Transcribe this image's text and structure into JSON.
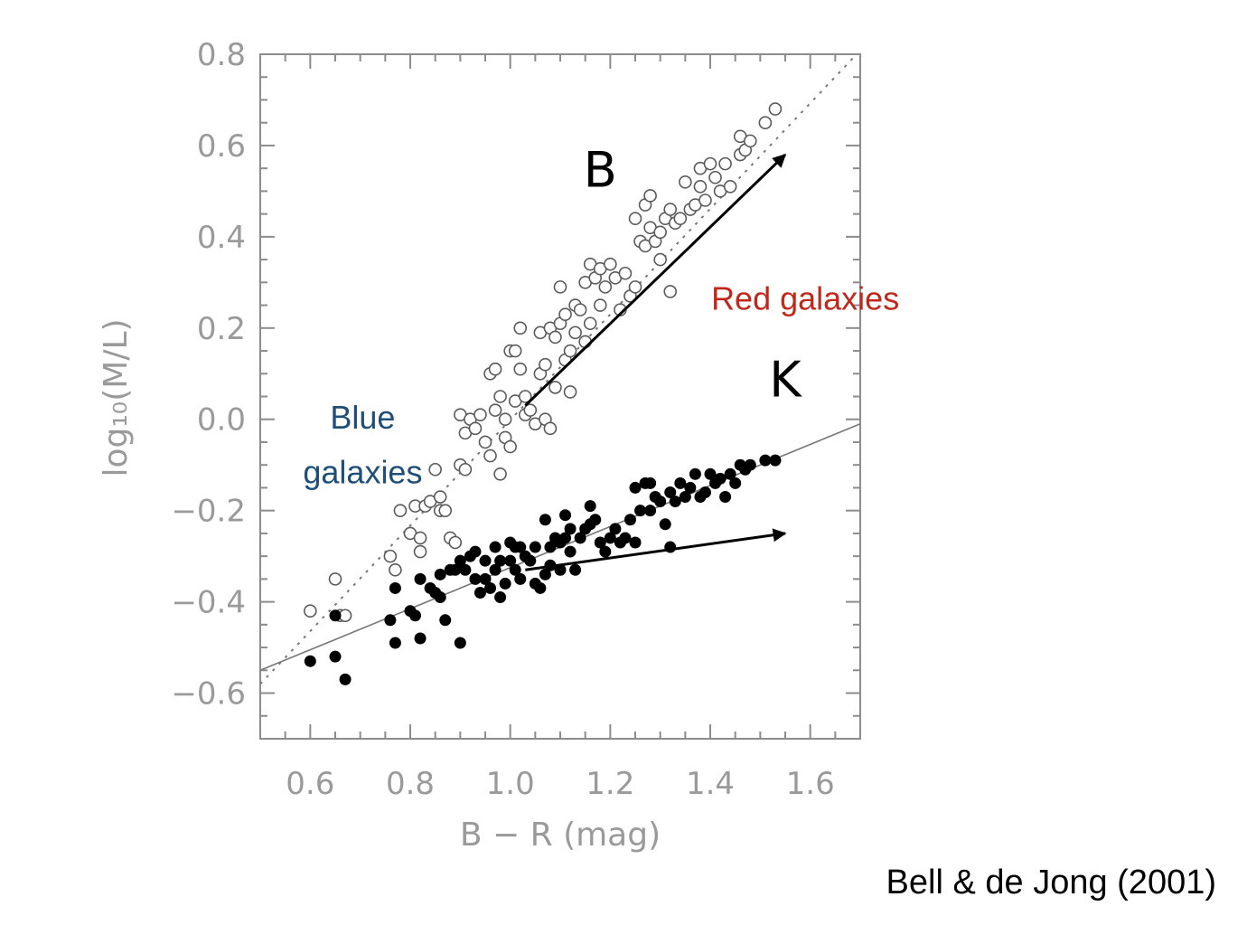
{
  "chart_data": {
    "type": "scatter",
    "xlabel": "B − R (mag)",
    "ylabel": "log₁₀(M/L)",
    "xlim": [
      0.5,
      1.7
    ],
    "ylim": [
      -0.7,
      0.8
    ],
    "x_ticks": [
      "0.6",
      "0.8",
      "1.0",
      "1.2",
      "1.4",
      "1.6"
    ],
    "y_ticks": [
      "0.8",
      "0.6",
      "0.4",
      "0.2",
      "0.0",
      "−0.2",
      "−0.4",
      "−0.6"
    ],
    "x_tick_values": [
      0.6,
      0.8,
      1.0,
      1.2,
      1.4,
      1.6
    ],
    "y_tick_values": [
      0.8,
      0.6,
      0.4,
      0.2,
      0.0,
      -0.2,
      -0.4,
      -0.6
    ],
    "grid": false,
    "series": [
      {
        "name": "B",
        "marker": "open-circle",
        "points": [
          [
            0.6,
            -0.42
          ],
          [
            0.65,
            -0.35
          ],
          [
            0.66,
            -0.43
          ],
          [
            0.67,
            -0.43
          ],
          [
            0.76,
            -0.3
          ],
          [
            0.77,
            -0.33
          ],
          [
            0.78,
            -0.2
          ],
          [
            0.8,
            -0.25
          ],
          [
            0.81,
            -0.19
          ],
          [
            0.82,
            -0.29
          ],
          [
            0.82,
            -0.26
          ],
          [
            0.83,
            -0.19
          ],
          [
            0.84,
            -0.18
          ],
          [
            0.85,
            -0.11
          ],
          [
            0.86,
            -0.17
          ],
          [
            0.86,
            -0.2
          ],
          [
            0.87,
            -0.2
          ],
          [
            0.88,
            -0.26
          ],
          [
            0.89,
            -0.27
          ],
          [
            0.9,
            -0.1
          ],
          [
            0.9,
            0.01
          ],
          [
            0.91,
            -0.03
          ],
          [
            0.91,
            -0.11
          ],
          [
            0.92,
            0.0
          ],
          [
            0.93,
            -0.02
          ],
          [
            0.94,
            0.01
          ],
          [
            0.95,
            -0.05
          ],
          [
            0.96,
            -0.08
          ],
          [
            0.96,
            0.1
          ],
          [
            0.97,
            0.11
          ],
          [
            0.97,
            0.02
          ],
          [
            0.98,
            -0.12
          ],
          [
            0.98,
            0.05
          ],
          [
            0.99,
            -0.04
          ],
          [
            0.99,
            0.0
          ],
          [
            1.0,
            0.15
          ],
          [
            1.0,
            -0.06
          ],
          [
            1.01,
            0.15
          ],
          [
            1.01,
            0.04
          ],
          [
            1.02,
            0.2
          ],
          [
            1.02,
            0.11
          ],
          [
            1.03,
            0.05
          ],
          [
            1.03,
            0.01
          ],
          [
            1.04,
            0.02
          ],
          [
            1.05,
            -0.01
          ],
          [
            1.06,
            0.1
          ],
          [
            1.06,
            0.19
          ],
          [
            1.07,
            0.0
          ],
          [
            1.07,
            0.12
          ],
          [
            1.08,
            0.2
          ],
          [
            1.08,
            -0.02
          ],
          [
            1.09,
            0.18
          ],
          [
            1.09,
            0.07
          ],
          [
            1.1,
            0.29
          ],
          [
            1.1,
            0.21
          ],
          [
            1.11,
            0.23
          ],
          [
            1.11,
            0.13
          ],
          [
            1.12,
            0.15
          ],
          [
            1.12,
            0.06
          ],
          [
            1.13,
            0.25
          ],
          [
            1.13,
            0.19
          ],
          [
            1.14,
            0.24
          ],
          [
            1.15,
            0.3
          ],
          [
            1.15,
            0.17
          ],
          [
            1.16,
            0.34
          ],
          [
            1.16,
            0.21
          ],
          [
            1.17,
            0.31
          ],
          [
            1.18,
            0.33
          ],
          [
            1.18,
            0.25
          ],
          [
            1.19,
            0.29
          ],
          [
            1.2,
            0.34
          ],
          [
            1.21,
            0.31
          ],
          [
            1.22,
            0.24
          ],
          [
            1.23,
            0.32
          ],
          [
            1.24,
            0.27
          ],
          [
            1.25,
            0.29
          ],
          [
            1.25,
            0.44
          ],
          [
            1.26,
            0.39
          ],
          [
            1.27,
            0.47
          ],
          [
            1.27,
            0.38
          ],
          [
            1.28,
            0.42
          ],
          [
            1.28,
            0.49
          ],
          [
            1.29,
            0.39
          ],
          [
            1.3,
            0.35
          ],
          [
            1.3,
            0.41
          ],
          [
            1.31,
            0.44
          ],
          [
            1.32,
            0.46
          ],
          [
            1.32,
            0.28
          ],
          [
            1.33,
            0.43
          ],
          [
            1.34,
            0.44
          ],
          [
            1.35,
            0.52
          ],
          [
            1.36,
            0.46
          ],
          [
            1.37,
            0.47
          ],
          [
            1.38,
            0.51
          ],
          [
            1.38,
            0.55
          ],
          [
            1.39,
            0.48
          ],
          [
            1.4,
            0.56
          ],
          [
            1.41,
            0.53
          ],
          [
            1.42,
            0.5
          ],
          [
            1.43,
            0.56
          ],
          [
            1.44,
            0.51
          ],
          [
            1.46,
            0.58
          ],
          [
            1.46,
            0.62
          ],
          [
            1.47,
            0.59
          ],
          [
            1.48,
            0.61
          ],
          [
            1.51,
            0.65
          ],
          [
            1.53,
            0.68
          ]
        ]
      },
      {
        "name": "K",
        "marker": "filled-circle",
        "points": [
          [
            0.6,
            -0.53
          ],
          [
            0.65,
            -0.52
          ],
          [
            0.65,
            -0.43
          ],
          [
            0.67,
            -0.57
          ],
          [
            0.76,
            -0.44
          ],
          [
            0.77,
            -0.37
          ],
          [
            0.77,
            -0.49
          ],
          [
            0.8,
            -0.42
          ],
          [
            0.81,
            -0.43
          ],
          [
            0.82,
            -0.35
          ],
          [
            0.82,
            -0.48
          ],
          [
            0.84,
            -0.37
          ],
          [
            0.85,
            -0.38
          ],
          [
            0.86,
            -0.34
          ],
          [
            0.86,
            -0.39
          ],
          [
            0.87,
            -0.44
          ],
          [
            0.88,
            -0.33
          ],
          [
            0.89,
            -0.33
          ],
          [
            0.9,
            -0.31
          ],
          [
            0.9,
            -0.49
          ],
          [
            0.91,
            -0.33
          ],
          [
            0.92,
            -0.3
          ],
          [
            0.93,
            -0.35
          ],
          [
            0.93,
            -0.29
          ],
          [
            0.94,
            -0.38
          ],
          [
            0.95,
            -0.31
          ],
          [
            0.95,
            -0.35
          ],
          [
            0.96,
            -0.37
          ],
          [
            0.97,
            -0.33
          ],
          [
            0.97,
            -0.28
          ],
          [
            0.98,
            -0.31
          ],
          [
            0.98,
            -0.39
          ],
          [
            0.99,
            -0.36
          ],
          [
            1.0,
            -0.27
          ],
          [
            1.0,
            -0.31
          ],
          [
            1.01,
            -0.28
          ],
          [
            1.01,
            -0.33
          ],
          [
            1.02,
            -0.28
          ],
          [
            1.02,
            -0.35
          ],
          [
            1.03,
            -0.3
          ],
          [
            1.04,
            -0.31
          ],
          [
            1.05,
            -0.28
          ],
          [
            1.05,
            -0.36
          ],
          [
            1.06,
            -0.37
          ],
          [
            1.07,
            -0.34
          ],
          [
            1.07,
            -0.22
          ],
          [
            1.08,
            -0.28
          ],
          [
            1.08,
            -0.32
          ],
          [
            1.09,
            -0.26
          ],
          [
            1.1,
            -0.27
          ],
          [
            1.1,
            -0.33
          ],
          [
            1.11,
            -0.21
          ],
          [
            1.11,
            -0.26
          ],
          [
            1.12,
            -0.29
          ],
          [
            1.12,
            -0.24
          ],
          [
            1.13,
            -0.33
          ],
          [
            1.14,
            -0.26
          ],
          [
            1.15,
            -0.24
          ],
          [
            1.16,
            -0.23
          ],
          [
            1.16,
            -0.19
          ],
          [
            1.17,
            -0.22
          ],
          [
            1.18,
            -0.27
          ],
          [
            1.19,
            -0.29
          ],
          [
            1.2,
            -0.26
          ],
          [
            1.21,
            -0.24
          ],
          [
            1.22,
            -0.27
          ],
          [
            1.23,
            -0.26
          ],
          [
            1.24,
            -0.22
          ],
          [
            1.25,
            -0.27
          ],
          [
            1.25,
            -0.15
          ],
          [
            1.26,
            -0.2
          ],
          [
            1.27,
            -0.14
          ],
          [
            1.28,
            -0.2
          ],
          [
            1.28,
            -0.14
          ],
          [
            1.29,
            -0.17
          ],
          [
            1.3,
            -0.18
          ],
          [
            1.31,
            -0.23
          ],
          [
            1.32,
            -0.16
          ],
          [
            1.32,
            -0.28
          ],
          [
            1.33,
            -0.18
          ],
          [
            1.34,
            -0.14
          ],
          [
            1.35,
            -0.17
          ],
          [
            1.36,
            -0.15
          ],
          [
            1.37,
            -0.12
          ],
          [
            1.38,
            -0.17
          ],
          [
            1.39,
            -0.16
          ],
          [
            1.4,
            -0.12
          ],
          [
            1.41,
            -0.14
          ],
          [
            1.42,
            -0.13
          ],
          [
            1.43,
            -0.17
          ],
          [
            1.44,
            -0.12
          ],
          [
            1.45,
            -0.14
          ],
          [
            1.46,
            -0.1
          ],
          [
            1.47,
            -0.11
          ],
          [
            1.48,
            -0.1
          ],
          [
            1.51,
            -0.09
          ],
          [
            1.53,
            -0.09
          ]
        ]
      }
    ],
    "fit_lines": [
      {
        "name": "B",
        "style": "dotted",
        "x": [
          0.5,
          1.71
        ],
        "y": [
          -0.58,
          0.82
        ]
      },
      {
        "name": "K",
        "style": "solid",
        "x": [
          0.5,
          1.7
        ],
        "y": [
          -0.55,
          -0.01
        ]
      }
    ],
    "arrows": [
      {
        "band": "B",
        "from": [
          1.03,
          0.03
        ],
        "to": [
          1.55,
          0.58
        ]
      },
      {
        "band": "K",
        "from": [
          1.03,
          -0.33
        ],
        "to": [
          1.55,
          -0.25
        ]
      }
    ],
    "annotations": [
      {
        "text": "B",
        "x": 1.18,
        "y": 0.51
      },
      {
        "text": "K",
        "x": 1.55,
        "y": 0.05
      },
      {
        "text": "Blue",
        "x": 0.705,
        "y": -0.02
      },
      {
        "text": "galaxies",
        "x": 0.705,
        "y": -0.14
      },
      {
        "text": "Red galaxies",
        "x": 1.59,
        "y": 0.24
      }
    ]
  },
  "labels": {
    "band_b": "B",
    "band_k": "K",
    "blue_line1": "Blue",
    "blue_line2": "galaxies",
    "red": "Red galaxies",
    "credit": "Bell & de Jong (2001)"
  },
  "colors": {
    "axis": "#9a9a9a",
    "frame": "#8c8c8c",
    "marker": "#000000",
    "open_marker": "#5a5a5a",
    "fit_line": "#777777",
    "blue_text": "#1f4e79",
    "red_text": "#c0281c",
    "arrow": "#000000"
  }
}
